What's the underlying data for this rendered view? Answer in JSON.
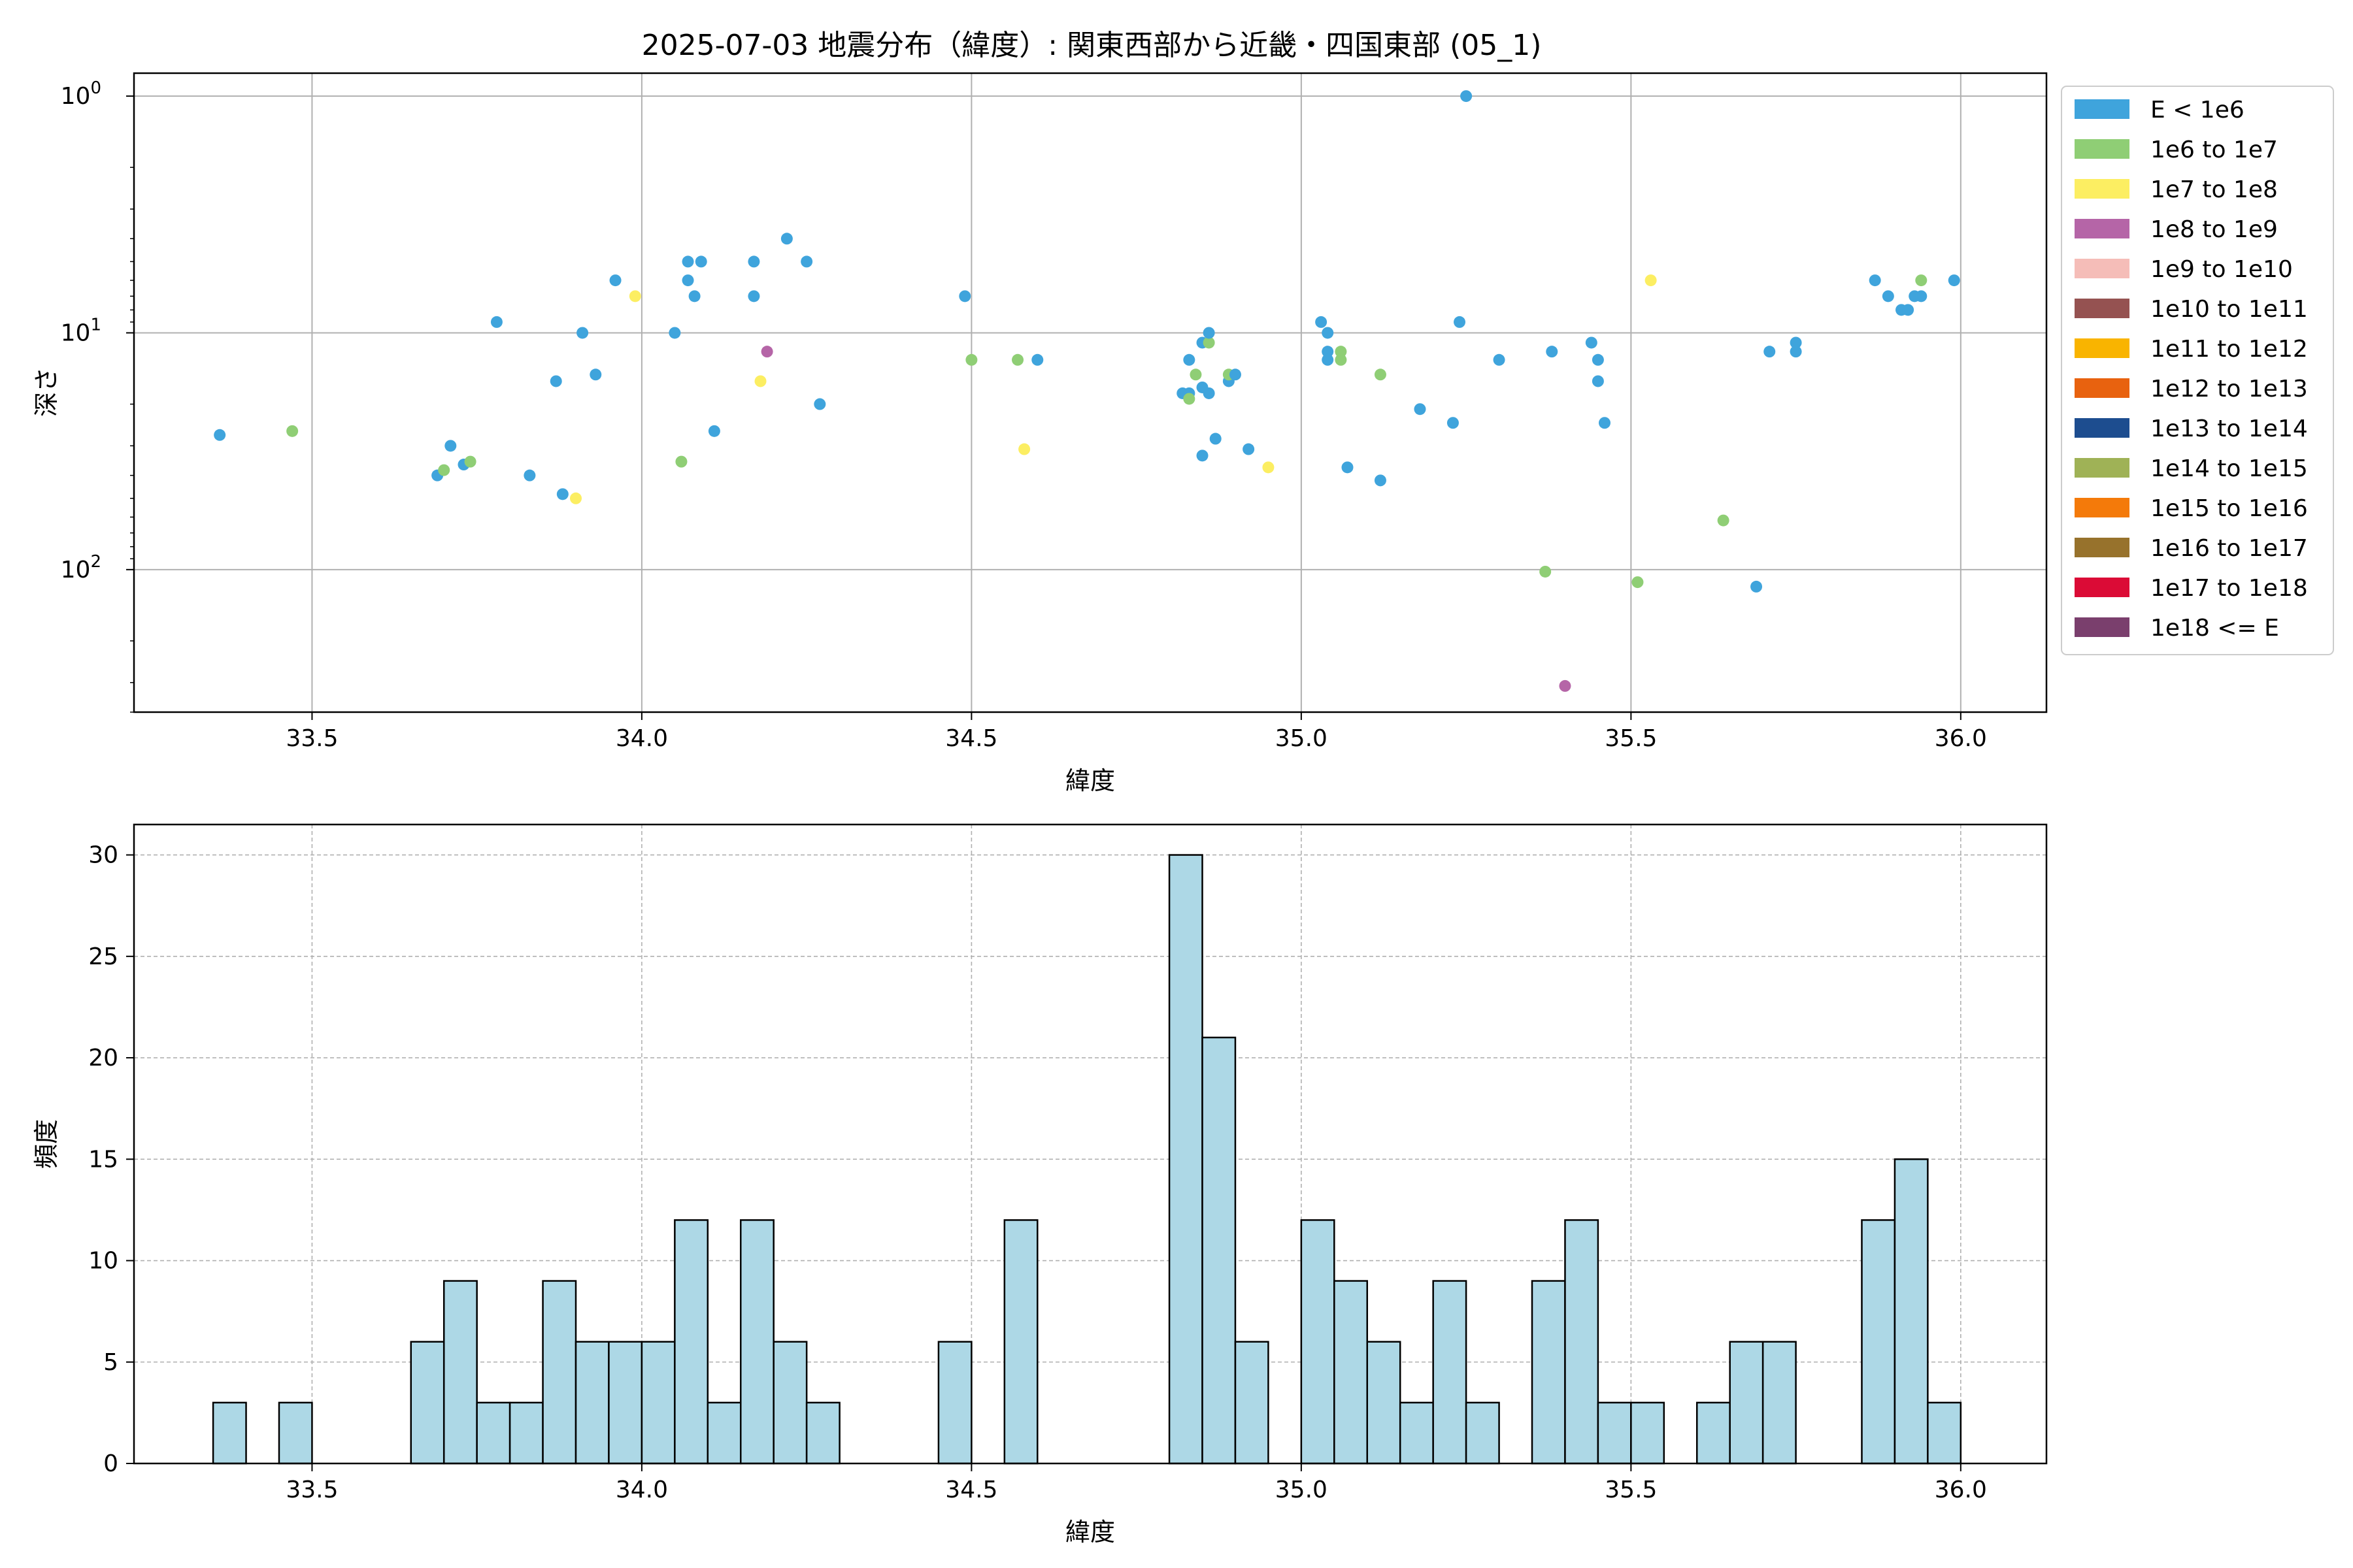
{
  "figure": {
    "title": "2025-07-03 地震分布（緯度）: 関東西部から近畿・四国東部 (05_1)"
  },
  "chart_data": [
    {
      "type": "scatter",
      "xlabel": "緯度",
      "ylabel": "深さ",
      "xlim": [
        33.23,
        36.13
      ],
      "yscale": "log",
      "y_inverted": true,
      "ylim": [
        400,
        0.8
      ],
      "xticks": [
        "33.5",
        "34.0",
        "34.5",
        "35.0",
        "35.5",
        "36.0"
      ],
      "xtick_values": [
        33.5,
        34.0,
        34.5,
        35.0,
        35.5,
        36.0
      ],
      "ytick_values": [
        1,
        10,
        100
      ],
      "grid": true,
      "legend": {
        "placement": "outside-right",
        "entries": [
          {
            "label": "E < 1e6",
            "color": "#3fa4dc"
          },
          {
            "label": "1e6 to 1e7",
            "color": "#8fce75"
          },
          {
            "label": "1e7 to 1e8",
            "color": "#fcee62"
          },
          {
            "label": "1e8 to 1e9",
            "color": "#b565a7"
          },
          {
            "label": "1e9 to 1e10",
            "color": "#f5bdb8"
          },
          {
            "label": "1e10 to 1e11",
            "color": "#955251"
          },
          {
            "label": "1e11 to 1e12",
            "color": "#f9b400"
          },
          {
            "label": "1e12 to 1e13",
            "color": "#e8620f"
          },
          {
            "label": "1e13 to 1e14",
            "color": "#1d4d8f"
          },
          {
            "label": "1e14 to 1e15",
            "color": "#9fb256"
          },
          {
            "label": "1e15 to 1e16",
            "color": "#f47a0a"
          },
          {
            "label": "1e16 to 1e17",
            "color": "#97722c"
          },
          {
            "label": "1e17 to 1e18",
            "color": "#db0b36"
          },
          {
            "label": "1e18 <= E",
            "color": "#7a3f6d"
          }
        ]
      },
      "points": [
        {
          "x": 33.36,
          "y": 27,
          "c": 0
        },
        {
          "x": 33.47,
          "y": 26,
          "c": 1
        },
        {
          "x": 33.69,
          "y": 40,
          "c": 0
        },
        {
          "x": 33.7,
          "y": 38,
          "c": 1
        },
        {
          "x": 33.71,
          "y": 30,
          "c": 0
        },
        {
          "x": 33.73,
          "y": 36,
          "c": 0
        },
        {
          "x": 33.74,
          "y": 35,
          "c": 1
        },
        {
          "x": 33.78,
          "y": 9,
          "c": 0
        },
        {
          "x": 33.83,
          "y": 40,
          "c": 0
        },
        {
          "x": 33.87,
          "y": 16,
          "c": 0
        },
        {
          "x": 33.88,
          "y": 48,
          "c": 0
        },
        {
          "x": 33.9,
          "y": 50,
          "c": 2
        },
        {
          "x": 33.91,
          "y": 10,
          "c": 0
        },
        {
          "x": 33.93,
          "y": 15,
          "c": 0
        },
        {
          "x": 33.96,
          "y": 6,
          "c": 0
        },
        {
          "x": 33.99,
          "y": 7,
          "c": 2
        },
        {
          "x": 34.05,
          "y": 10,
          "c": 0
        },
        {
          "x": 34.06,
          "y": 35,
          "c": 1
        },
        {
          "x": 34.07,
          "y": 5,
          "c": 0
        },
        {
          "x": 34.07,
          "y": 6,
          "c": 0
        },
        {
          "x": 34.08,
          "y": 7,
          "c": 0
        },
        {
          "x": 34.09,
          "y": 5,
          "c": 0
        },
        {
          "x": 34.11,
          "y": 26,
          "c": 0
        },
        {
          "x": 34.17,
          "y": 5,
          "c": 0
        },
        {
          "x": 34.17,
          "y": 7,
          "c": 0
        },
        {
          "x": 34.18,
          "y": 16,
          "c": 2
        },
        {
          "x": 34.19,
          "y": 12,
          "c": 3
        },
        {
          "x": 34.22,
          "y": 4,
          "c": 0
        },
        {
          "x": 34.25,
          "y": 5,
          "c": 0
        },
        {
          "x": 34.27,
          "y": 20,
          "c": 0
        },
        {
          "x": 34.49,
          "y": 7,
          "c": 0
        },
        {
          "x": 34.5,
          "y": 13,
          "c": 1
        },
        {
          "x": 34.57,
          "y": 13,
          "c": 1
        },
        {
          "x": 34.58,
          "y": 31,
          "c": 2
        },
        {
          "x": 34.6,
          "y": 13,
          "c": 0
        },
        {
          "x": 34.82,
          "y": 18,
          "c": 0
        },
        {
          "x": 34.83,
          "y": 18,
          "c": 0
        },
        {
          "x": 34.83,
          "y": 19,
          "c": 1
        },
        {
          "x": 34.83,
          "y": 13,
          "c": 0
        },
        {
          "x": 34.84,
          "y": 15,
          "c": 1
        },
        {
          "x": 34.85,
          "y": 33,
          "c": 0
        },
        {
          "x": 34.85,
          "y": 11,
          "c": 0
        },
        {
          "x": 34.85,
          "y": 17,
          "c": 0
        },
        {
          "x": 34.86,
          "y": 11,
          "c": 1
        },
        {
          "x": 34.86,
          "y": 10,
          "c": 0
        },
        {
          "x": 34.86,
          "y": 18,
          "c": 0
        },
        {
          "x": 34.87,
          "y": 28,
          "c": 0
        },
        {
          "x": 34.89,
          "y": 16,
          "c": 0
        },
        {
          "x": 34.89,
          "y": 15,
          "c": 1
        },
        {
          "x": 34.9,
          "y": 15,
          "c": 0
        },
        {
          "x": 34.92,
          "y": 31,
          "c": 0
        },
        {
          "x": 34.95,
          "y": 37,
          "c": 2
        },
        {
          "x": 35.03,
          "y": 9,
          "c": 0
        },
        {
          "x": 35.04,
          "y": 10,
          "c": 0
        },
        {
          "x": 35.04,
          "y": 12,
          "c": 0
        },
        {
          "x": 35.04,
          "y": 13,
          "c": 0
        },
        {
          "x": 35.06,
          "y": 12,
          "c": 1
        },
        {
          "x": 35.06,
          "y": 13,
          "c": 1
        },
        {
          "x": 35.07,
          "y": 37,
          "c": 0
        },
        {
          "x": 35.12,
          "y": 15,
          "c": 1
        },
        {
          "x": 35.12,
          "y": 42,
          "c": 0
        },
        {
          "x": 35.18,
          "y": 21,
          "c": 0
        },
        {
          "x": 35.23,
          "y": 24,
          "c": 0
        },
        {
          "x": 35.24,
          "y": 9,
          "c": 0
        },
        {
          "x": 35.25,
          "y": 1,
          "c": 0
        },
        {
          "x": 35.3,
          "y": 13,
          "c": 0
        },
        {
          "x": 35.37,
          "y": 102,
          "c": 1
        },
        {
          "x": 35.38,
          "y": 12,
          "c": 0
        },
        {
          "x": 35.4,
          "y": 310,
          "c": 3
        },
        {
          "x": 35.44,
          "y": 11,
          "c": 0
        },
        {
          "x": 35.45,
          "y": 13,
          "c": 0
        },
        {
          "x": 35.45,
          "y": 16,
          "c": 0
        },
        {
          "x": 35.46,
          "y": 24,
          "c": 0
        },
        {
          "x": 35.51,
          "y": 113,
          "c": 1
        },
        {
          "x": 35.53,
          "y": 6,
          "c": 2
        },
        {
          "x": 35.64,
          "y": 62,
          "c": 1
        },
        {
          "x": 35.69,
          "y": 118,
          "c": 0
        },
        {
          "x": 35.71,
          "y": 12,
          "c": 0
        },
        {
          "x": 35.75,
          "y": 11,
          "c": 0
        },
        {
          "x": 35.75,
          "y": 12,
          "c": 0
        },
        {
          "x": 35.87,
          "y": 6,
          "c": 0
        },
        {
          "x": 35.89,
          "y": 7,
          "c": 0
        },
        {
          "x": 35.91,
          "y": 8,
          "c": 0
        },
        {
          "x": 35.92,
          "y": 8,
          "c": 0
        },
        {
          "x": 35.93,
          "y": 7,
          "c": 0
        },
        {
          "x": 35.94,
          "y": 7,
          "c": 0
        },
        {
          "x": 35.94,
          "y": 6,
          "c": 1
        },
        {
          "x": 35.99,
          "y": 6,
          "c": 0
        }
      ]
    },
    {
      "type": "bar",
      "subtype": "histogram",
      "xlabel": "緯度",
      "ylabel": "頻度",
      "xlim": [
        33.23,
        36.13
      ],
      "ylim": [
        0,
        31.5
      ],
      "xticks": [
        "33.5",
        "34.0",
        "34.5",
        "35.0",
        "35.5",
        "36.0"
      ],
      "xtick_values": [
        33.5,
        34.0,
        34.5,
        35.0,
        35.5,
        36.0
      ],
      "yticks": [
        "0",
        "5",
        "10",
        "15",
        "20",
        "25",
        "30"
      ],
      "ytick_values": [
        0,
        5,
        10,
        15,
        20,
        25,
        30
      ],
      "grid": true,
      "bar_color": "#add8e6",
      "bin_start": 33.35,
      "bin_width": 0.05,
      "counts": [
        3,
        0,
        3,
        0,
        0,
        0,
        6,
        9,
        3,
        3,
        9,
        6,
        6,
        6,
        12,
        3,
        12,
        6,
        3,
        0,
        0,
        0,
        6,
        0,
        12,
        0,
        0,
        0,
        0,
        30,
        21,
        6,
        0,
        12,
        9,
        6,
        3,
        9,
        3,
        0,
        9,
        12,
        3,
        3,
        0,
        3,
        6,
        6,
        0,
        0,
        12,
        15,
        3
      ]
    }
  ]
}
